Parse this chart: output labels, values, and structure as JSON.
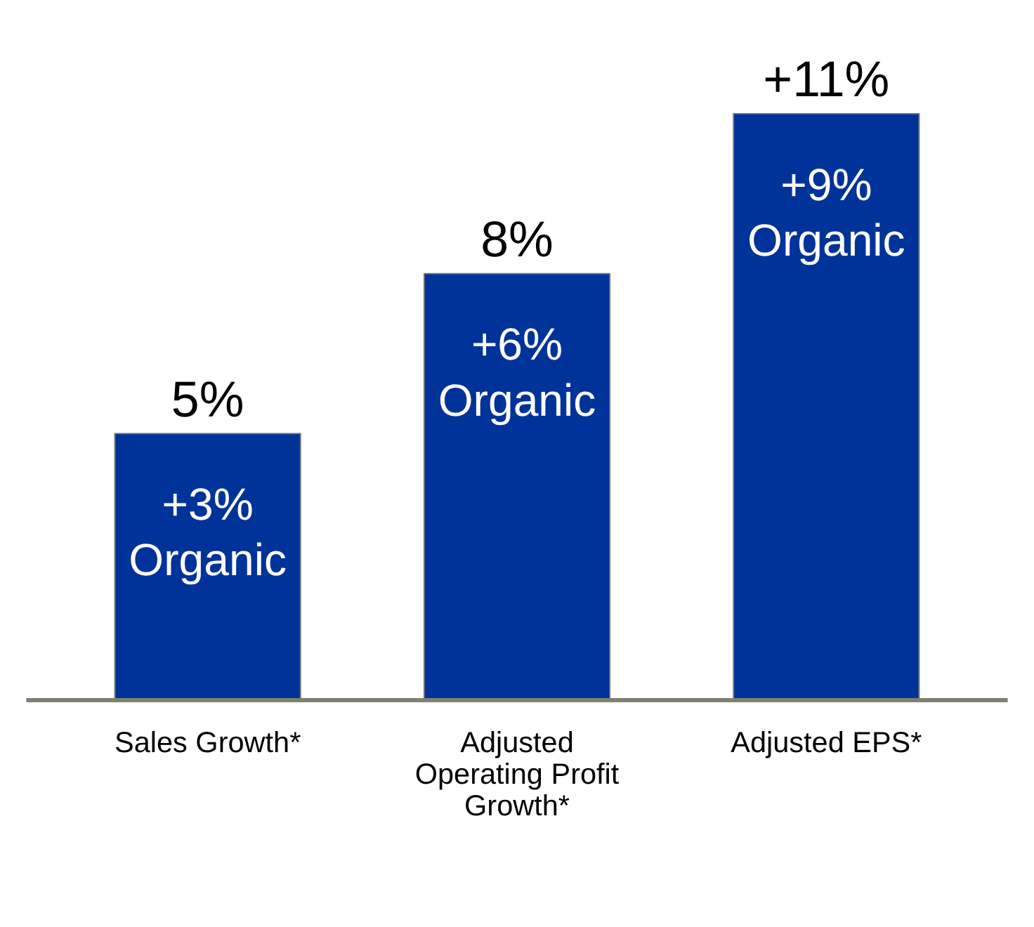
{
  "chart_data": {
    "type": "bar",
    "categories": [
      "Sales Growth*",
      "Adjusted Operating Profit Growth*",
      "Adjusted EPS*"
    ],
    "values": [
      5,
      8,
      11
    ],
    "value_labels": [
      "5%",
      "8%",
      "+11%"
    ],
    "color": "#003399",
    "annotations": [
      "+3% Organic",
      "+6% Organic",
      "+9% Organic"
    ]
  }
}
